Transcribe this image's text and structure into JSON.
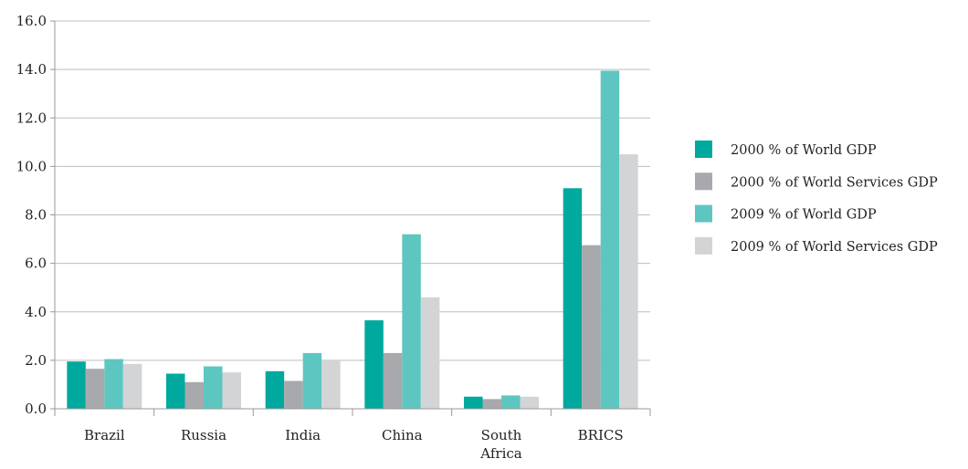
{
  "chart_data": {
    "type": "bar",
    "categories": [
      [
        "Brazil"
      ],
      [
        "Russia"
      ],
      [
        "India"
      ],
      [
        "China"
      ],
      [
        "South",
        "Africa"
      ],
      [
        "BRICS"
      ]
    ],
    "series": [
      {
        "name": "2000 % of World GDP",
        "color": "#00a99d",
        "values": [
          1.95,
          1.45,
          1.55,
          3.65,
          0.5,
          9.1
        ]
      },
      {
        "name": "2000 % of World Services GDP",
        "color": "#a8a9ad",
        "values": [
          1.65,
          1.1,
          1.15,
          2.3,
          0.4,
          6.75
        ]
      },
      {
        "name": "2009 % of World GDP",
        "color": "#5ec6c0",
        "values": [
          2.05,
          1.75,
          2.3,
          7.2,
          0.55,
          13.95
        ]
      },
      {
        "name": "2009 % of World Services GDP",
        "color": "#d3d4d6",
        "values": [
          1.85,
          1.5,
          2.0,
          4.6,
          0.5,
          10.5
        ]
      }
    ],
    "ylim": [
      0,
      16
    ],
    "yticks": [
      "0.0",
      "2.0",
      "4.0",
      "6.0",
      "8.0",
      "10.0",
      "12.0",
      "14.0",
      "16.0"
    ],
    "grid": true,
    "legend_position": "right"
  }
}
